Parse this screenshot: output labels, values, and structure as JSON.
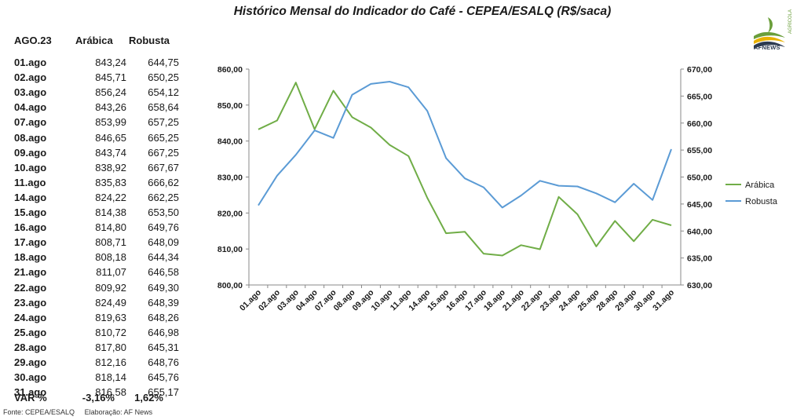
{
  "title": "Histórico Mensal do Indicador do Café - CEPEA/ESALQ (R$/saca)",
  "logo": {
    "text": "AFNEWS",
    "sub": "AGRÍCOLA",
    "colors": [
      "#6a9e3a",
      "#e8b100",
      "#2c3a50"
    ]
  },
  "table": {
    "headers": {
      "period": "AGO.23",
      "arabica": "Arábica",
      "robusta": "Robusta"
    },
    "rows": [
      {
        "date": "01.ago",
        "arabica": "843,24",
        "robusta": "644,75"
      },
      {
        "date": "02.ago",
        "arabica": "845,71",
        "robusta": "650,25"
      },
      {
        "date": "03.ago",
        "arabica": "856,24",
        "robusta": "654,12"
      },
      {
        "date": "04.ago",
        "arabica": "843,26",
        "robusta": "658,64"
      },
      {
        "date": "07.ago",
        "arabica": "853,99",
        "robusta": "657,25"
      },
      {
        "date": "08.ago",
        "arabica": "846,65",
        "robusta": "665,25"
      },
      {
        "date": "09.ago",
        "arabica": "843,74",
        "robusta": "667,25"
      },
      {
        "date": "10.ago",
        "arabica": "838,92",
        "robusta": "667,67"
      },
      {
        "date": "11.ago",
        "arabica": "835,83",
        "robusta": "666,62"
      },
      {
        "date": "14.ago",
        "arabica": "824,22",
        "robusta": "662,25"
      },
      {
        "date": "15.ago",
        "arabica": "814,38",
        "robusta": "653,50"
      },
      {
        "date": "16.ago",
        "arabica": "814,80",
        "robusta": "649,76"
      },
      {
        "date": "17.ago",
        "arabica": "808,71",
        "robusta": "648,09"
      },
      {
        "date": "18.ago",
        "arabica": "808,18",
        "robusta": "644,34"
      },
      {
        "date": "21.ago",
        "arabica": "811,07",
        "robusta": "646,58"
      },
      {
        "date": "22.ago",
        "arabica": "809,92",
        "robusta": "649,30"
      },
      {
        "date": "23.ago",
        "arabica": "824,49",
        "robusta": "648,39"
      },
      {
        "date": "24.ago",
        "arabica": "819,63",
        "robusta": "648,26"
      },
      {
        "date": "25.ago",
        "arabica": "810,72",
        "robusta": "646,98"
      },
      {
        "date": "28.ago",
        "arabica": "817,80",
        "robusta": "645,31"
      },
      {
        "date": "29.ago",
        "arabica": "812,16",
        "robusta": "648,76"
      },
      {
        "date": "30.ago",
        "arabica": "818,14",
        "robusta": "645,76"
      },
      {
        "date": "31.ago",
        "arabica": "816,58",
        "robusta": "655,17"
      }
    ],
    "variation": {
      "label": "VAR %",
      "arabica": "-3,16%",
      "robusta": "1,62%"
    }
  },
  "footer": {
    "source": "Fonte: CEPEA/ESALQ",
    "credit": "Elaboração: AF News"
  },
  "chart_data": {
    "type": "line",
    "title": "Histórico Mensal do Indicador do Café - CEPEA/ESALQ (R$/saca)",
    "categories": [
      "01.ago",
      "02.ago",
      "03.ago",
      "04.ago",
      "07.ago",
      "08.ago",
      "09.ago",
      "10.ago",
      "11.ago",
      "14.ago",
      "15.ago",
      "16.ago",
      "17.ago",
      "18.ago",
      "21.ago",
      "22.ago",
      "23.ago",
      "24.ago",
      "25.ago",
      "28.ago",
      "29.ago",
      "30.ago",
      "31.ago"
    ],
    "series": [
      {
        "name": "Arábica",
        "axis": "left",
        "color": "#70ad47",
        "values": [
          843.24,
          845.71,
          856.24,
          843.26,
          853.99,
          846.65,
          843.74,
          838.92,
          835.83,
          824.22,
          814.38,
          814.8,
          808.71,
          808.18,
          811.07,
          809.92,
          824.49,
          819.63,
          810.72,
          817.8,
          812.16,
          818.14,
          816.58
        ]
      },
      {
        "name": "Robusta",
        "axis": "right",
        "color": "#5b9bd5",
        "values": [
          644.75,
          650.25,
          654.12,
          658.64,
          657.25,
          665.25,
          667.25,
          667.67,
          666.62,
          662.25,
          653.5,
          649.76,
          648.09,
          644.34,
          646.58,
          649.3,
          648.39,
          648.26,
          646.98,
          645.31,
          648.76,
          645.76,
          655.17
        ]
      }
    ],
    "yleft": {
      "lim": [
        800,
        860
      ],
      "ticks": [
        "800,00",
        "810,00",
        "820,00",
        "830,00",
        "840,00",
        "850,00",
        "860,00"
      ]
    },
    "yright": {
      "lim": [
        630,
        670
      ],
      "ticks": [
        "630,00",
        "635,00",
        "640,00",
        "645,00",
        "650,00",
        "655,00",
        "660,00",
        "665,00",
        "670,00"
      ]
    },
    "legend": "right",
    "grid": false
  }
}
